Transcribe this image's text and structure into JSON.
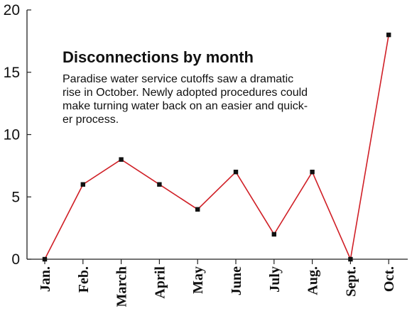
{
  "chart_data": {
    "type": "line",
    "title": "Disconnections by month",
    "subtitle_lines": [
      "Paradise water service cutoffs saw a dramatic",
      "rise in October. Newly adopted procedures could",
      "make turning water back on an easier and quick-",
      "er process."
    ],
    "categories": [
      "Jan.",
      "Feb.",
      "March",
      "April",
      "May",
      "June",
      "July",
      "Aug.",
      "Sept.",
      "Oct."
    ],
    "series": [
      {
        "values": [
          0,
          6,
          8,
          6,
          4,
          7,
          2,
          7,
          0,
          18
        ]
      }
    ],
    "ylim": [
      0,
      20
    ],
    "yticks": [
      0,
      5,
      10,
      15,
      20
    ],
    "grid": false,
    "line_color": "#d01f26",
    "marker_color": "#111111",
    "axis_color": "#222222"
  }
}
